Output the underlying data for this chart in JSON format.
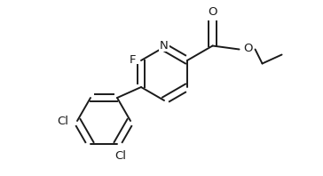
{
  "background": "#ffffff",
  "line_color": "#1a1a1a",
  "line_width": 1.4,
  "font_size": 9.5,
  "figsize": [
    3.64,
    1.98
  ],
  "dpi": 100,
  "xlim": [
    0,
    3.64
  ],
  "ylim": [
    0,
    1.98
  ]
}
